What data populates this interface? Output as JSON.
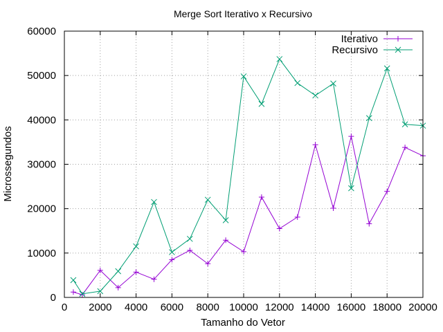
{
  "chart_data": {
    "type": "line",
    "title": "Merge Sort Iterativo x Recursivo",
    "xlabel": "Tamanho do Vetor",
    "ylabel": "Microssegundos",
    "xlim": [
      0,
      20000
    ],
    "ylim": [
      0,
      60000
    ],
    "xticks": [
      0,
      2000,
      4000,
      6000,
      8000,
      10000,
      12000,
      14000,
      16000,
      18000,
      20000
    ],
    "yticks": [
      0,
      10000,
      20000,
      30000,
      40000,
      50000,
      60000
    ],
    "grid": true,
    "legend_position": "top-right",
    "x": [
      500,
      1000,
      2000,
      3000,
      4000,
      5000,
      6000,
      7000,
      8000,
      9000,
      10000,
      11000,
      12000,
      13000,
      14000,
      15000,
      16000,
      17000,
      18000,
      19000,
      20000
    ],
    "series": [
      {
        "name": "Iterativo",
        "color": "#9400d3",
        "marker": "plus",
        "values": [
          1200,
          600,
          6100,
          2200,
          5700,
          4100,
          8500,
          10600,
          7600,
          12900,
          10300,
          22600,
          15500,
          18100,
          34400,
          20100,
          36300,
          16600,
          23900,
          33800,
          31900
        ]
      },
      {
        "name": "Recursivo",
        "color": "#009e73",
        "marker": "cross",
        "values": [
          3900,
          800,
          1400,
          5900,
          11500,
          21500,
          10200,
          13200,
          22000,
          17400,
          49800,
          43600,
          53700,
          48300,
          45500,
          48200,
          24600,
          40400,
          51600,
          39000,
          38700
        ]
      }
    ]
  }
}
